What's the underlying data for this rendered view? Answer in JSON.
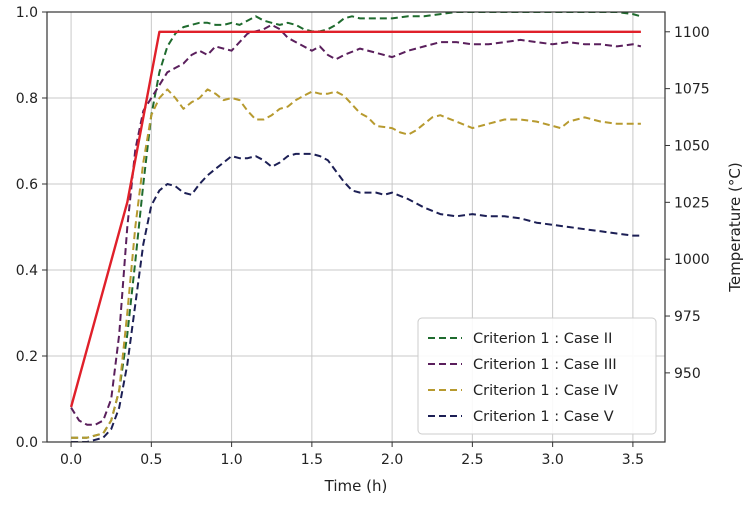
{
  "chart_data": {
    "type": "line",
    "xlabel": "Time (h)",
    "ylabel": "",
    "y2label": "Temperature (°C)",
    "xlim": [
      -0.15,
      3.7
    ],
    "ylim": [
      0.0,
      1.0
    ],
    "y2lim": [
      919.6,
      1108.7
    ],
    "grid": true,
    "legend_position": "lower-right",
    "x_ticks": [
      0.0,
      0.5,
      1.0,
      1.5,
      2.0,
      2.5,
      3.0,
      3.5
    ],
    "x_tick_labels": [
      "0.0",
      "0.5",
      "1.0",
      "1.5",
      "2.0",
      "2.5",
      "3.0",
      "3.5"
    ],
    "y_ticks": [
      0.0,
      0.2,
      0.4,
      0.6,
      0.8,
      1.0
    ],
    "y_tick_labels": [
      "0.0",
      "0.2",
      "0.4",
      "0.6",
      "0.8",
      "1.0"
    ],
    "y2_ticks": [
      950,
      975,
      1000,
      1025,
      1050,
      1075,
      1100
    ],
    "y2_tick_labels": [
      "950",
      "975",
      "1000",
      "1025",
      "1050",
      "1075",
      "1100"
    ],
    "temperature": {
      "color": "#e0202a",
      "axis": "right",
      "x": [
        0.0,
        0.35,
        0.55,
        3.55
      ],
      "y": [
        935,
        1025,
        1100,
        1100
      ]
    },
    "series": [
      {
        "name": "Criterion 1 : Case II",
        "color": "#1f6b2e",
        "x": [
          0.0,
          0.1,
          0.2,
          0.25,
          0.3,
          0.35,
          0.4,
          0.45,
          0.5,
          0.55,
          0.6,
          0.65,
          0.7,
          0.75,
          0.8,
          0.85,
          0.9,
          0.95,
          1.0,
          1.05,
          1.1,
          1.15,
          1.2,
          1.25,
          1.3,
          1.35,
          1.4,
          1.45,
          1.5,
          1.55,
          1.6,
          1.65,
          1.7,
          1.75,
          1.8,
          1.9,
          2.0,
          2.1,
          2.2,
          2.3,
          2.4,
          2.5,
          2.6,
          2.7,
          2.8,
          2.9,
          3.0,
          3.1,
          3.2,
          3.3,
          3.4,
          3.5,
          3.55
        ],
        "y": [
          0.01,
          0.01,
          0.02,
          0.05,
          0.12,
          0.25,
          0.42,
          0.6,
          0.76,
          0.86,
          0.92,
          0.95,
          0.965,
          0.97,
          0.975,
          0.975,
          0.97,
          0.97,
          0.975,
          0.97,
          0.98,
          0.99,
          0.98,
          0.975,
          0.97,
          0.975,
          0.97,
          0.96,
          0.955,
          0.955,
          0.96,
          0.97,
          0.985,
          0.99,
          0.985,
          0.985,
          0.985,
          0.99,
          0.99,
          0.995,
          1.0,
          1.0,
          1.0,
          1.0,
          1.0,
          1.0,
          1.0,
          1.0,
          1.0,
          1.0,
          1.0,
          0.995,
          0.99
        ]
      },
      {
        "name": "Criterion 1 : Case III",
        "color": "#5a1f5c",
        "x": [
          0.0,
          0.05,
          0.1,
          0.15,
          0.2,
          0.25,
          0.3,
          0.35,
          0.4,
          0.45,
          0.5,
          0.55,
          0.6,
          0.65,
          0.7,
          0.75,
          0.8,
          0.85,
          0.9,
          0.95,
          1.0,
          1.05,
          1.1,
          1.15,
          1.2,
          1.25,
          1.3,
          1.35,
          1.4,
          1.45,
          1.5,
          1.55,
          1.6,
          1.65,
          1.7,
          1.8,
          1.9,
          2.0,
          2.1,
          2.2,
          2.3,
          2.4,
          2.5,
          2.6,
          2.7,
          2.8,
          2.9,
          3.0,
          3.1,
          3.2,
          3.3,
          3.4,
          3.5,
          3.55
        ],
        "y": [
          0.08,
          0.05,
          0.04,
          0.04,
          0.05,
          0.1,
          0.25,
          0.5,
          0.68,
          0.77,
          0.8,
          0.83,
          0.86,
          0.87,
          0.88,
          0.9,
          0.91,
          0.9,
          0.92,
          0.915,
          0.91,
          0.93,
          0.95,
          0.955,
          0.96,
          0.97,
          0.96,
          0.94,
          0.93,
          0.92,
          0.91,
          0.92,
          0.9,
          0.89,
          0.9,
          0.915,
          0.905,
          0.895,
          0.91,
          0.92,
          0.93,
          0.93,
          0.925,
          0.925,
          0.93,
          0.935,
          0.93,
          0.925,
          0.93,
          0.925,
          0.925,
          0.92,
          0.925,
          0.92
        ]
      },
      {
        "name": "Criterion 1 : Case IV",
        "color": "#b79a2f",
        "x": [
          0.0,
          0.1,
          0.2,
          0.25,
          0.3,
          0.35,
          0.4,
          0.45,
          0.5,
          0.55,
          0.6,
          0.65,
          0.7,
          0.75,
          0.8,
          0.85,
          0.9,
          0.95,
          1.0,
          1.05,
          1.1,
          1.15,
          1.2,
          1.25,
          1.3,
          1.35,
          1.4,
          1.45,
          1.5,
          1.55,
          1.6,
          1.65,
          1.7,
          1.75,
          1.8,
          1.85,
          1.9,
          2.0,
          2.05,
          2.1,
          2.15,
          2.2,
          2.25,
          2.3,
          2.4,
          2.5,
          2.6,
          2.7,
          2.8,
          2.9,
          3.0,
          3.05,
          3.1,
          3.2,
          3.3,
          3.4,
          3.5,
          3.55
        ],
        "y": [
          0.01,
          0.01,
          0.02,
          0.05,
          0.12,
          0.3,
          0.5,
          0.65,
          0.76,
          0.8,
          0.82,
          0.8,
          0.775,
          0.79,
          0.8,
          0.82,
          0.81,
          0.795,
          0.8,
          0.795,
          0.77,
          0.75,
          0.75,
          0.76,
          0.775,
          0.78,
          0.795,
          0.805,
          0.815,
          0.81,
          0.81,
          0.815,
          0.805,
          0.785,
          0.765,
          0.755,
          0.735,
          0.73,
          0.72,
          0.715,
          0.725,
          0.74,
          0.755,
          0.76,
          0.745,
          0.73,
          0.74,
          0.75,
          0.75,
          0.745,
          0.735,
          0.73,
          0.745,
          0.755,
          0.745,
          0.74,
          0.74,
          0.74
        ]
      },
      {
        "name": "Criterion 1 : Case V",
        "color": "#1c1f55",
        "x": [
          0.0,
          0.1,
          0.2,
          0.25,
          0.3,
          0.35,
          0.4,
          0.45,
          0.5,
          0.55,
          0.6,
          0.65,
          0.7,
          0.75,
          0.8,
          0.85,
          0.9,
          0.95,
          1.0,
          1.05,
          1.1,
          1.15,
          1.2,
          1.25,
          1.3,
          1.35,
          1.4,
          1.45,
          1.5,
          1.55,
          1.6,
          1.65,
          1.7,
          1.75,
          1.8,
          1.9,
          1.95,
          2.0,
          2.1,
          2.2,
          2.3,
          2.4,
          2.5,
          2.6,
          2.7,
          2.8,
          2.9,
          3.0,
          3.1,
          3.2,
          3.3,
          3.4,
          3.5,
          3.55
        ],
        "y": [
          0.0,
          0.0,
          0.01,
          0.03,
          0.08,
          0.18,
          0.32,
          0.46,
          0.55,
          0.585,
          0.6,
          0.595,
          0.58,
          0.575,
          0.6,
          0.62,
          0.635,
          0.65,
          0.665,
          0.66,
          0.66,
          0.665,
          0.655,
          0.64,
          0.65,
          0.665,
          0.67,
          0.67,
          0.67,
          0.665,
          0.655,
          0.63,
          0.605,
          0.585,
          0.58,
          0.58,
          0.575,
          0.58,
          0.565,
          0.545,
          0.53,
          0.525,
          0.53,
          0.525,
          0.525,
          0.52,
          0.51,
          0.505,
          0.5,
          0.495,
          0.49,
          0.485,
          0.48,
          0.48
        ]
      }
    ]
  }
}
